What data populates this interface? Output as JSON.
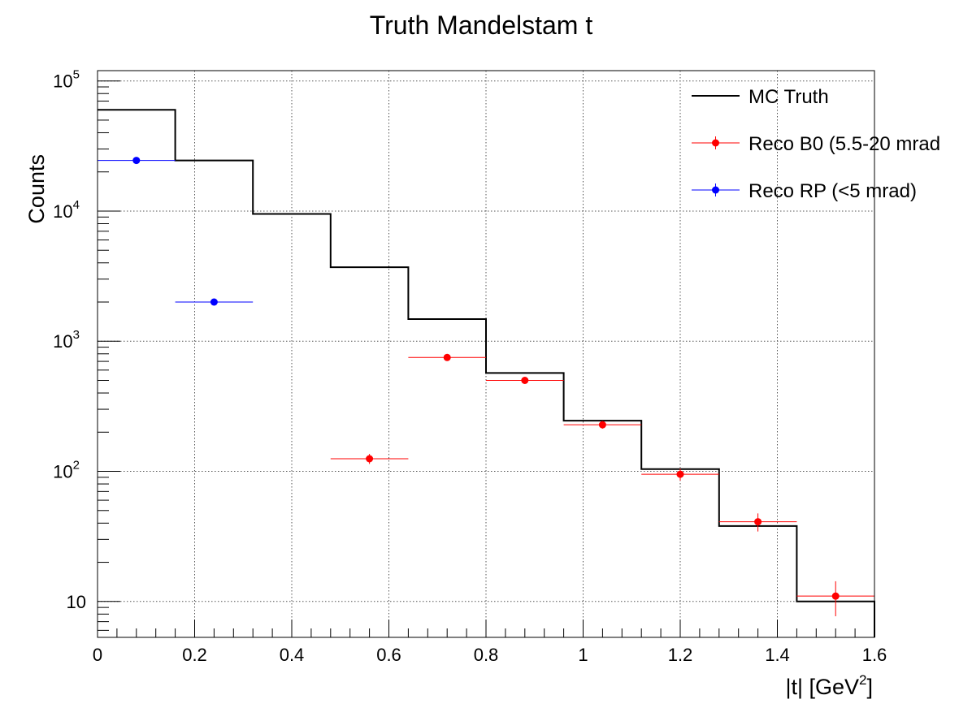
{
  "chart_data": {
    "type": "histogram",
    "title": "Truth Mandelstam t",
    "xlabel_main": "|t| [GeV",
    "xlabel_sup": "2",
    "xlabel_end": "]",
    "ylabel": "Counts",
    "xlim": [
      0,
      1.6
    ],
    "ylim": [
      5.3,
      120000
    ],
    "y_scale": "log",
    "grid": true,
    "legend_position": "top-right",
    "x_ticks": [
      {
        "value": 0,
        "label": "0"
      },
      {
        "value": 0.2,
        "label": "0.2"
      },
      {
        "value": 0.4,
        "label": "0.4"
      },
      {
        "value": 0.6,
        "label": "0.6"
      },
      {
        "value": 0.8,
        "label": "0.8"
      },
      {
        "value": 1.0,
        "label": "1"
      },
      {
        "value": 1.2,
        "label": "1.2"
      },
      {
        "value": 1.4,
        "label": "1.4"
      },
      {
        "value": 1.6,
        "label": "1.6"
      }
    ],
    "y_ticks": [
      {
        "value": 10,
        "base": "10",
        "exp": ""
      },
      {
        "value": 100,
        "base": "10",
        "exp": "2"
      },
      {
        "value": 1000,
        "base": "10",
        "exp": "3"
      },
      {
        "value": 10000,
        "base": "10",
        "exp": "4"
      },
      {
        "value": 100000,
        "base": "10",
        "exp": "5"
      }
    ],
    "bin_edges": [
      0,
      0.16,
      0.32,
      0.48,
      0.64,
      0.8,
      0.96,
      1.12,
      1.28,
      1.44,
      1.6
    ],
    "series": [
      {
        "name": "MC Truth",
        "kind": "step",
        "color": "#000000",
        "values": [
          60000,
          24500,
          9500,
          3700,
          1480,
          570,
          245,
          104,
          38,
          10
        ]
      },
      {
        "name": "Reco B0 (5.5-20 mrad",
        "kind": "points",
        "color": "#ff0000",
        "points": [
          {
            "x": 0.56,
            "y": 125,
            "err": 11
          },
          {
            "x": 0.72,
            "y": 750,
            "err": 27
          },
          {
            "x": 0.88,
            "y": 500,
            "err": 22
          },
          {
            "x": 1.04,
            "y": 228,
            "err": 15
          },
          {
            "x": 1.2,
            "y": 95,
            "err": 10
          },
          {
            "x": 1.36,
            "y": 41,
            "err": 6.5
          },
          {
            "x": 1.52,
            "y": 11,
            "err": 3.3
          }
        ]
      },
      {
        "name": "Reco RP (<5 mrad)",
        "kind": "points",
        "color": "#0000ff",
        "points": [
          {
            "x": 0.08,
            "y": 24500,
            "err": 157
          },
          {
            "x": 0.24,
            "y": 2000,
            "err": 45
          }
        ]
      }
    ]
  }
}
